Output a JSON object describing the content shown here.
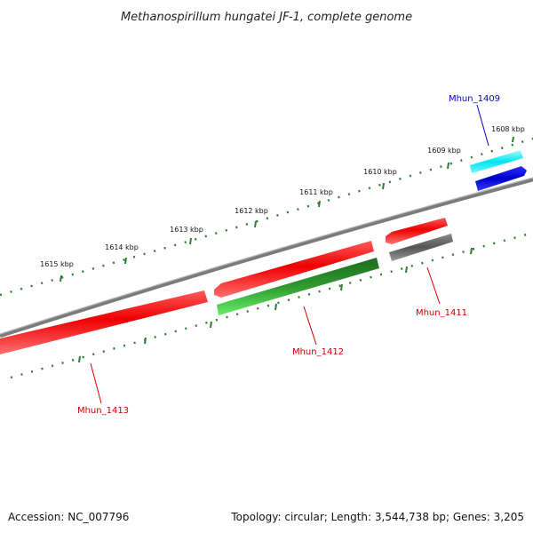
{
  "title": "Methanospirillum hungatei JF-1, complete genome",
  "footer": {
    "accession": "Accession: NC_007796",
    "summary": "Topology: circular; Length: 3,544,738 bp; Genes: 3,205"
  },
  "colors": {
    "backbone": "#808080",
    "tick_mark": "#2e7d32",
    "forward_gene": "#ee0000",
    "reverse_gene_green": "#33aa33",
    "gray_gene": "#6a6a6a",
    "cyan_gene": "#00e5ee",
    "blue_gene": "#0000dd",
    "label_red": "#cc0000",
    "label_blue": "#0000cc"
  },
  "scale_ticks": [
    {
      "label": "1608 kbp"
    },
    {
      "label": "1609 kbp"
    },
    {
      "label": "1610 kbp"
    },
    {
      "label": "1611 kbp"
    },
    {
      "label": "1612 kbp"
    },
    {
      "label": "1613 kbp"
    },
    {
      "label": "1614 kbp"
    },
    {
      "label": "1615 kbp"
    }
  ],
  "gene_labels": [
    {
      "name": "Mhun_1409",
      "color": "blue"
    },
    {
      "name": "Mhun_1411",
      "color": "red"
    },
    {
      "name": "Mhun_1412",
      "color": "red"
    },
    {
      "name": "Mhun_1413",
      "color": "red"
    }
  ]
}
